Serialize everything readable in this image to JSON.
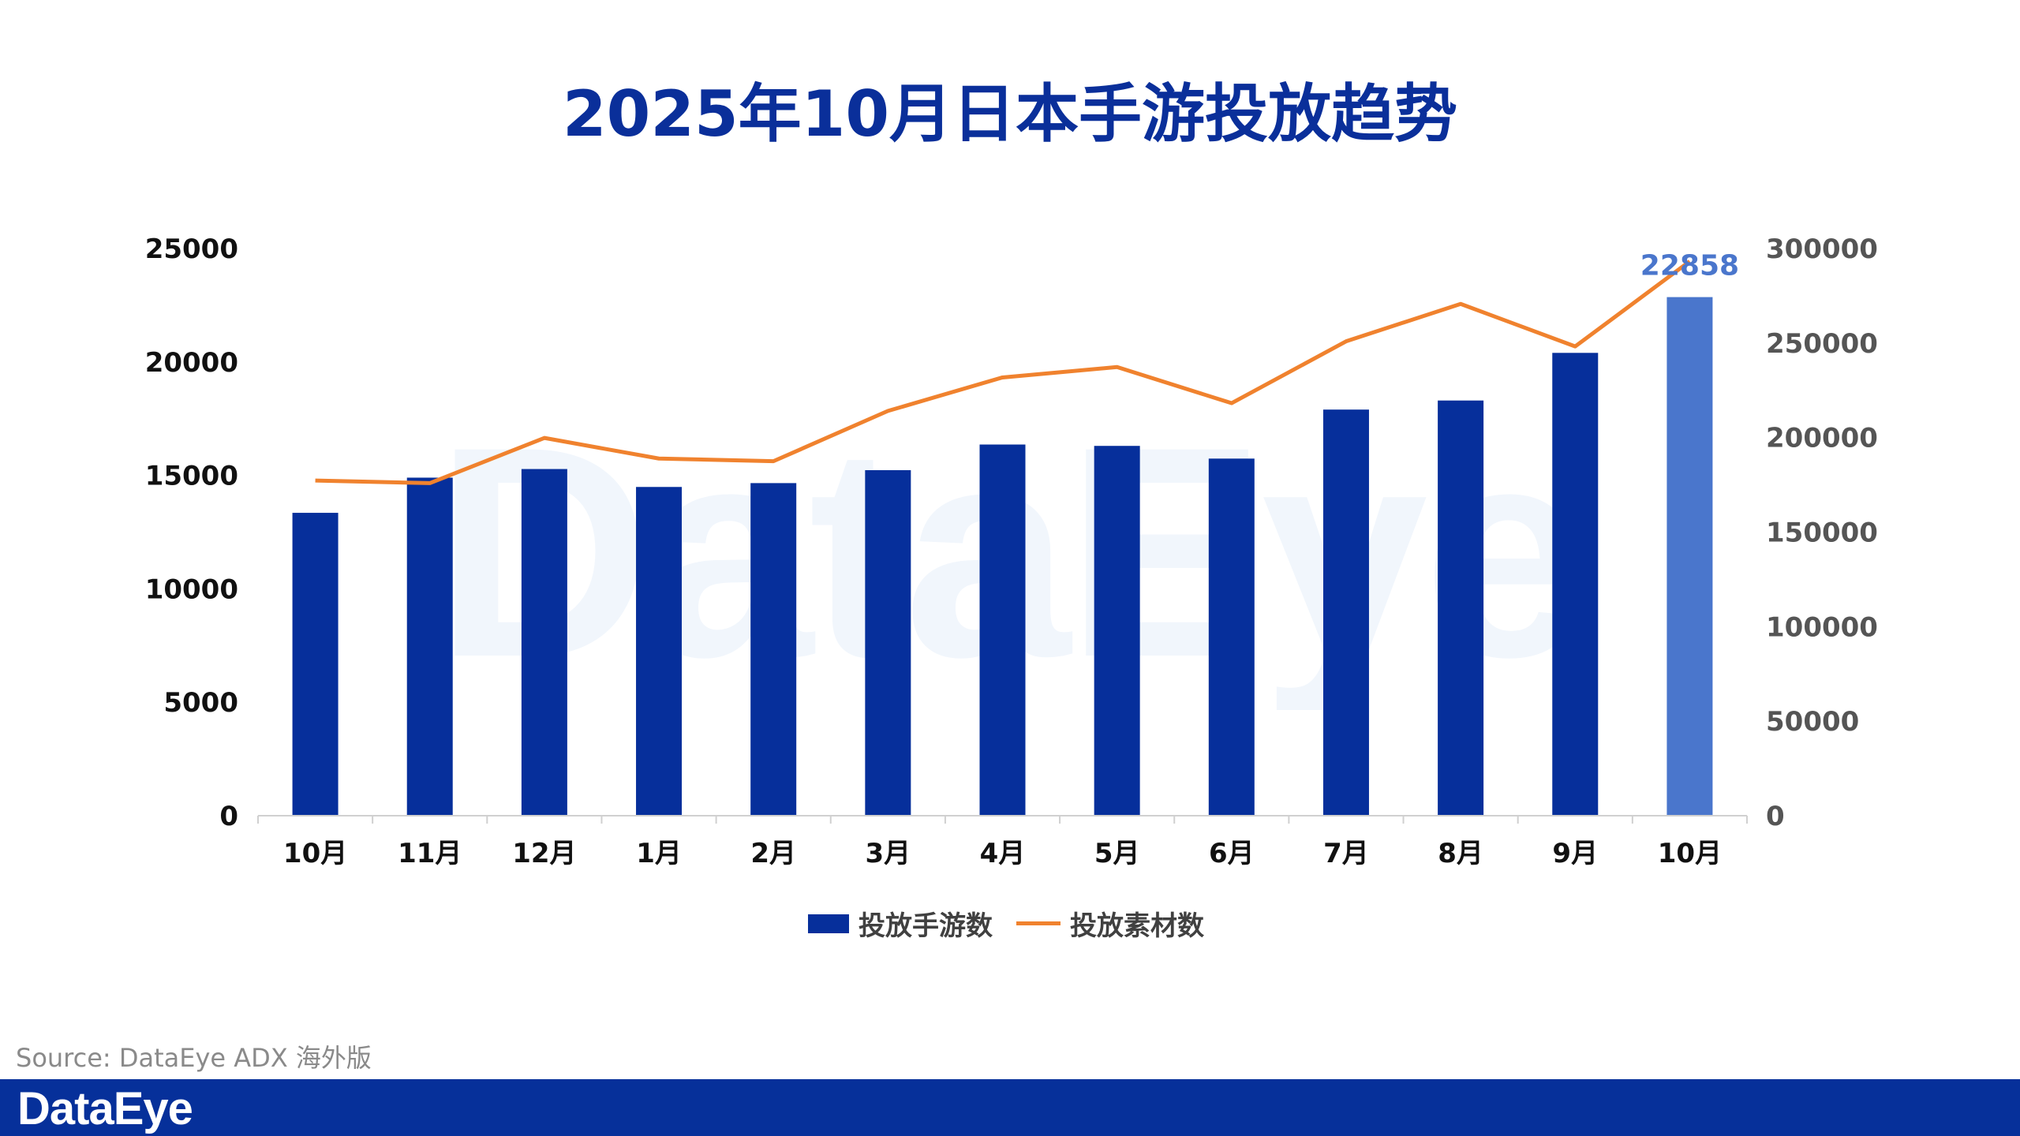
{
  "title": "2025年10月日本手游投放趋势",
  "source": "Source: DataEye ADX 海外版",
  "logo": "DataEye",
  "watermark": "DataEye",
  "colors": {
    "bar": "#062f9b",
    "bar_highlight": "#4a76cc",
    "line": "#f0822e",
    "brand": "#06309a"
  },
  "chart_data": {
    "type": "bar+line",
    "categories": [
      "10月",
      "11月",
      "12月",
      "1月",
      "2月",
      "3月",
      "4月",
      "5月",
      "6月",
      "7月",
      "8月",
      "9月",
      "10月"
    ],
    "series": [
      {
        "name": "投放手游数",
        "type": "bar",
        "axis": "left",
        "values": [
          13350,
          14900,
          15280,
          14490,
          14660,
          15230,
          16360,
          16300,
          15740,
          17900,
          18300,
          20400,
          22858
        ]
      },
      {
        "name": "投放素材数",
        "type": "line",
        "axis": "right",
        "values": [
          177300,
          175900,
          199800,
          188900,
          187500,
          214100,
          231800,
          237300,
          218200,
          250900,
          270700,
          248200,
          293200
        ]
      }
    ],
    "data_labels": [
      {
        "category_index": 12,
        "series": "投放手游数",
        "text": "22858"
      }
    ],
    "y_left": {
      "range": [
        0,
        25000
      ],
      "ticks": [
        "0",
        "5000",
        "10000",
        "15000",
        "20000",
        "25000"
      ]
    },
    "y_right": {
      "range": [
        0,
        300000
      ],
      "ticks": [
        "0",
        "50000",
        "100000",
        "150000",
        "200000",
        "250000",
        "300000"
      ]
    },
    "grid": false,
    "legend": "bottom"
  }
}
